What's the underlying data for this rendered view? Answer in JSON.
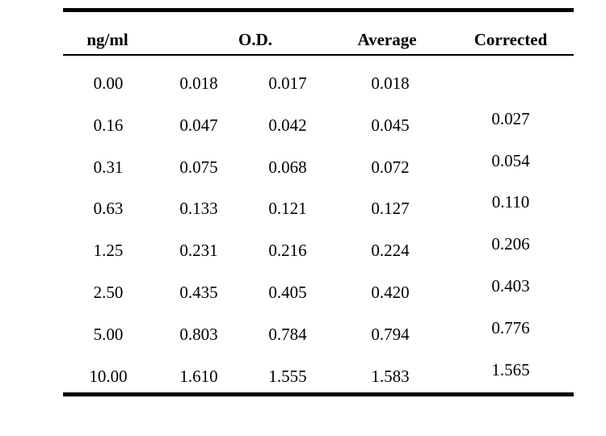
{
  "table": {
    "headers": {
      "conc": "ng/ml",
      "od": "O.D.",
      "average": "Average",
      "corrected": "Corrected"
    },
    "rows": [
      {
        "conc": "0.00",
        "od1": "0.018",
        "od2": "0.017",
        "average": "0.018",
        "corrected": ""
      },
      {
        "conc": "0.16",
        "od1": "0.047",
        "od2": "0.042",
        "average": "0.045",
        "corrected": "0.027"
      },
      {
        "conc": "0.31",
        "od1": "0.075",
        "od2": "0.068",
        "average": "0.072",
        "corrected": "0.054"
      },
      {
        "conc": "0.63",
        "od1": "0.133",
        "od2": "0.121",
        "average": "0.127",
        "corrected": "0.110"
      },
      {
        "conc": "1.25",
        "od1": "0.231",
        "od2": "0.216",
        "average": "0.224",
        "corrected": "0.206"
      },
      {
        "conc": "2.50",
        "od1": "0.435",
        "od2": "0.405",
        "average": "0.420",
        "corrected": "0.403"
      },
      {
        "conc": "5.00",
        "od1": "0.803",
        "od2": "0.784",
        "average": "0.794",
        "corrected": "0.776"
      },
      {
        "conc": "10.00",
        "od1": "1.610",
        "od2": "1.555",
        "average": "1.583",
        "corrected": "1.565"
      }
    ]
  }
}
